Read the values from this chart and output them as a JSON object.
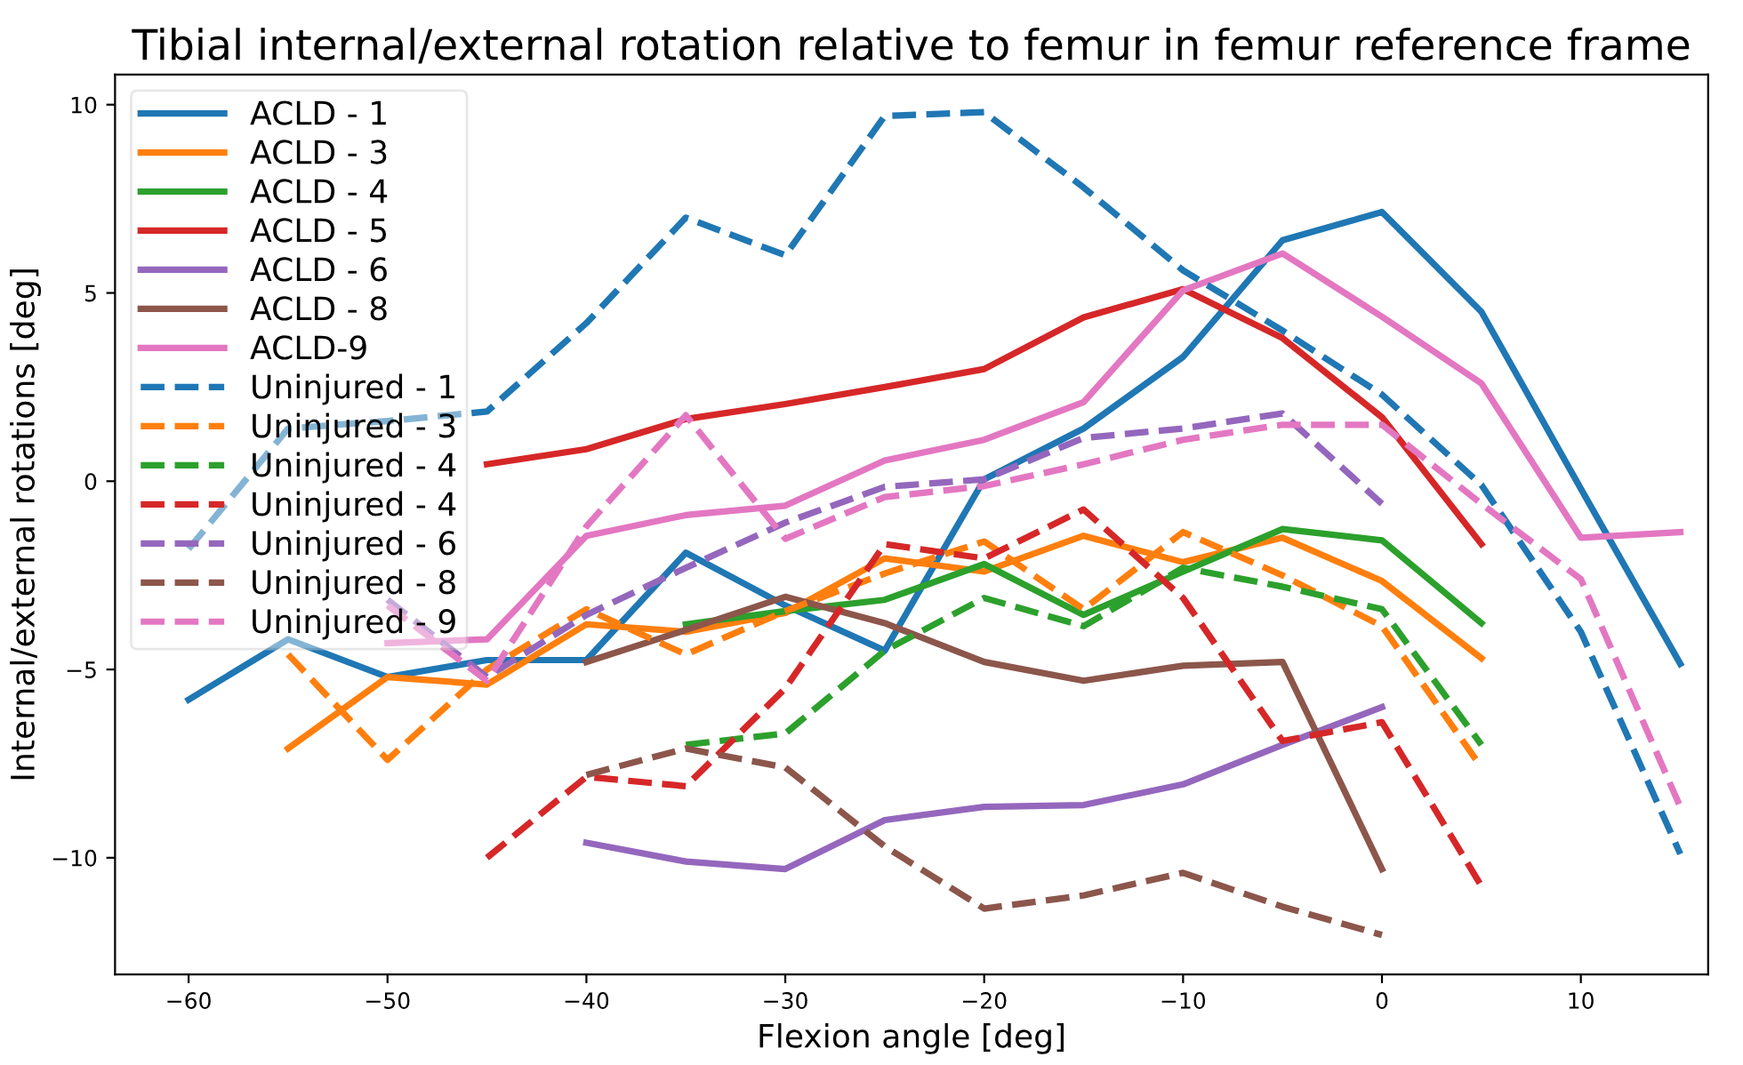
{
  "chart_data": {
    "type": "line",
    "title": "Tibial internal/external rotation relative to femur in femur reference frame",
    "xlabel": "Flexion angle [deg]",
    "ylabel": "Internal/external rotations [deg]",
    "xlim": [
      -63.7,
      16.4
    ],
    "ylim": [
      -13.1,
      10.8
    ],
    "xticks": [
      -60,
      -50,
      -40,
      -30,
      -20,
      -10,
      0,
      10
    ],
    "yticks": [
      -10,
      -5,
      0,
      5,
      10
    ],
    "grid": false,
    "legend": "top left",
    "series": [
      {
        "name": "ACLD - 1",
        "color": "#1f77b4",
        "line_style": "solid",
        "x": [
          -60,
          -55,
          -50,
          -45,
          -40,
          -35,
          -30,
          -25,
          -20,
          -15,
          -10,
          -5,
          0,
          5,
          10,
          15
        ],
        "values": [
          -5.8,
          -4.2,
          -5.2,
          -4.75,
          -4.75,
          -1.9,
          -3.3,
          -4.5,
          0.05,
          1.4,
          3.3,
          6.4,
          7.15,
          4.5,
          -0.2,
          -4.85
        ]
      },
      {
        "name": "ACLD - 3",
        "color": "#ff7f0e",
        "line_style": "solid",
        "x": [
          -55,
          -50,
          -45,
          -40,
          -35,
          -30,
          -25,
          -20,
          -15,
          -10,
          -5,
          0,
          5
        ],
        "values": [
          -7.1,
          -5.2,
          -5.4,
          -3.8,
          -4.0,
          -3.5,
          -2.05,
          -2.4,
          -1.45,
          -2.15,
          -1.5,
          -2.65,
          -4.7
        ]
      },
      {
        "name": "ACLD - 4",
        "color": "#2ca02c",
        "line_style": "solid",
        "x": [
          -35,
          -30,
          -25,
          -20,
          -15,
          -10,
          -5,
          0,
          5
        ],
        "values": [
          -3.8,
          -3.45,
          -3.15,
          -2.2,
          -3.55,
          -2.4,
          -1.27,
          -1.57,
          -3.77
        ]
      },
      {
        "name": "ACLD - 5",
        "color": "#d62728",
        "line_style": "solid",
        "x": [
          -45,
          -40,
          -35,
          -30,
          -25,
          -20,
          -15,
          -10,
          -5,
          0,
          5
        ],
        "values": [
          0.45,
          0.85,
          1.65,
          2.05,
          2.5,
          2.98,
          4.35,
          5.1,
          3.8,
          1.7,
          -1.67
        ]
      },
      {
        "name": "ACLD - 6",
        "color": "#9467bd",
        "line_style": "solid",
        "x": [
          -40,
          -35,
          -30,
          -25,
          -20,
          -15,
          -10,
          -5,
          0
        ],
        "values": [
          -9.6,
          -10.1,
          -10.3,
          -9.0,
          -8.65,
          -8.6,
          -8.05,
          -7.0,
          -6.0
        ]
      },
      {
        "name": "ACLD - 8",
        "color": "#8c564b",
        "line_style": "solid",
        "x": [
          -40,
          -35,
          -30,
          -25,
          -20,
          -15,
          -10,
          -5,
          0
        ],
        "values": [
          -4.8,
          -3.95,
          -3.07,
          -3.77,
          -4.8,
          -5.3,
          -4.9,
          -4.8,
          -10.3
        ]
      },
      {
        "name": "ACLD-9",
        "color": "#e377c2",
        "line_style": "solid",
        "x": [
          -50,
          -45,
          -40,
          -35,
          -30,
          -25,
          -20,
          -15,
          -10,
          -5,
          0,
          5,
          10,
          15
        ],
        "values": [
          -4.3,
          -4.2,
          -1.45,
          -0.9,
          -0.65,
          0.55,
          1.1,
          2.1,
          5.07,
          6.05,
          4.37,
          2.6,
          -1.5,
          -1.35
        ]
      },
      {
        "name": "Uninjured - 1",
        "color": "#1f77b4",
        "line_style": "dashed",
        "x": [
          -60,
          -55,
          -50,
          -45,
          -40,
          -35,
          -30,
          -25,
          -20,
          -15,
          -10,
          -5,
          0,
          5,
          10,
          15
        ],
        "values": [
          -1.8,
          1.4,
          1.6,
          1.85,
          4.2,
          7.0,
          6.0,
          9.7,
          9.8,
          7.8,
          5.6,
          4.0,
          2.3,
          -0.1,
          -4.0,
          -9.9
        ]
      },
      {
        "name": "Uninjured - 3",
        "color": "#ff7f0e",
        "line_style": "dashed",
        "x": [
          -55,
          -50,
          -45,
          -40,
          -35,
          -30,
          -25,
          -20,
          -15,
          -10,
          -5,
          0,
          5
        ],
        "values": [
          -4.6,
          -7.4,
          -5.0,
          -3.4,
          -4.6,
          -3.45,
          -2.45,
          -1.6,
          -3.4,
          -1.35,
          -2.5,
          -3.85,
          -7.6
        ]
      },
      {
        "name": "Uninjured - 4",
        "color": "#2ca02c",
        "line_style": "dashed",
        "x": [
          -35,
          -30,
          -25,
          -20,
          -15,
          -10,
          -5,
          0,
          5
        ],
        "values": [
          -7.0,
          -6.7,
          -4.5,
          -3.1,
          -3.85,
          -2.3,
          -2.8,
          -3.4,
          -7.0
        ]
      },
      {
        "name": "Uninjured - 4",
        "color": "#d62728",
        "line_style": "dashed",
        "x": [
          -45,
          -40,
          -35,
          -30,
          -25,
          -20,
          -15,
          -10,
          -5,
          0,
          5
        ],
        "values": [
          -10.0,
          -7.85,
          -8.1,
          -5.5,
          -1.67,
          -2.05,
          -0.75,
          -3.1,
          -6.9,
          -6.4,
          -10.75
        ]
      },
      {
        "name": "Uninjured - 6",
        "color": "#9467bd",
        "line_style": "dashed",
        "x": [
          -50,
          -45,
          -40,
          -35,
          -30,
          -25,
          -20,
          -15,
          -10,
          -5,
          0
        ],
        "values": [
          -3.15,
          -5.2,
          -3.55,
          -2.3,
          -1.1,
          -0.15,
          0.05,
          1.15,
          1.4,
          1.8,
          -0.6
        ]
      },
      {
        "name": "Uninjured - 8",
        "color": "#8c564b",
        "line_style": "dashed",
        "x": [
          -40,
          -35,
          -30,
          -25,
          -20,
          -15,
          -10,
          -5,
          0
        ],
        "values": [
          -7.8,
          -7.1,
          -7.6,
          -9.7,
          -11.35,
          -11.0,
          -10.4,
          -11.3,
          -12.05
        ]
      },
      {
        "name": "Uninjured - 9",
        "color": "#e377c2",
        "line_style": "dashed",
        "x": [
          -50,
          -45,
          -40,
          -35,
          -30,
          -25,
          -20,
          -15,
          -10,
          -5,
          0,
          5,
          10,
          15
        ],
        "values": [
          -3.3,
          -5.3,
          -1.2,
          1.75,
          -1.53,
          -0.42,
          -0.13,
          0.45,
          1.1,
          1.5,
          1.5,
          -0.6,
          -2.6,
          -8.65
        ]
      }
    ]
  }
}
